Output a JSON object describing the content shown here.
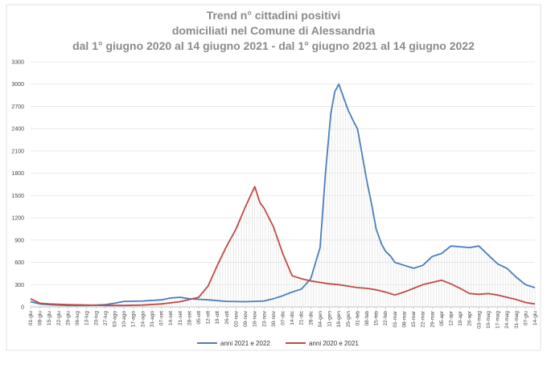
{
  "chart_data": {
    "type": "line",
    "title_lines": [
      "Trend n° cittadini positivi",
      "domiciliati nel Comune di Alessandria",
      "dal 1° giugno 2020 al 14 giugno 2021 - dal 1° giugno 2021 al 14 giugno 2022"
    ],
    "ylim": [
      0,
      3300
    ],
    "yticks": [
      0,
      300,
      600,
      900,
      1200,
      1500,
      1800,
      2100,
      2400,
      2700,
      3000,
      3300
    ],
    "grid": true,
    "legend_position": "bottom",
    "x_start_day": 1,
    "x_end_day": 379,
    "xtick_labels": [
      "01-giu",
      "08-giu",
      "15-giu",
      "22-giu",
      "29-giu",
      "06-lug",
      "13-lug",
      "20-lug",
      "27-lug",
      "03-ago",
      "10-ago",
      "17-ago",
      "24-ago",
      "31-ago",
      "07-set",
      "14-set",
      "21-set",
      "28-set",
      "05-ott",
      "12-ott",
      "19-ott",
      "26-ott",
      "02-nov",
      "09-nov",
      "16-nov",
      "23-nov",
      "30-nov",
      "07-dic",
      "14-dic",
      "21-dic",
      "28-dic",
      "04-gen",
      "11-gen",
      "18-gen",
      "25-gen",
      "01-feb",
      "08-feb",
      "15-feb",
      "22-feb",
      "01-mar",
      "08-mar",
      "15-mar",
      "22-mar",
      "29-mar",
      "05-apr",
      "12-apr",
      "19-apr",
      "26-apr",
      "03-mag",
      "10-mag",
      "17-mag",
      "24-mag",
      "31-mag",
      "07-giu",
      "14-giu"
    ],
    "series": [
      {
        "name": "anni 2021 e 2022",
        "color": "#4a7ebb",
        "x": [
          1,
          8,
          15,
          29,
          43,
          57,
          64,
          71,
          85,
          99,
          106,
          113,
          120,
          134,
          148,
          162,
          176,
          183,
          190,
          197,
          204,
          211,
          218,
          222,
          226,
          229,
          232,
          236,
          239,
          243,
          246,
          249,
          253,
          257,
          260,
          264,
          267,
          271,
          274,
          281,
          288,
          295,
          302,
          309,
          316,
          323,
          330,
          337,
          344,
          351,
          358,
          365,
          372,
          379
        ],
        "y": [
          70,
          40,
          30,
          20,
          20,
          30,
          50,
          75,
          80,
          95,
          120,
          130,
          110,
          95,
          75,
          70,
          80,
          110,
          150,
          200,
          240,
          380,
          800,
          1800,
          2600,
          2900,
          3000,
          2800,
          2650,
          2500,
          2400,
          2100,
          1700,
          1350,
          1050,
          850,
          750,
          680,
          600,
          560,
          520,
          560,
          680,
          720,
          820,
          810,
          800,
          820,
          700,
          580,
          520,
          400,
          300,
          260
        ]
      },
      {
        "name": "anni 2020 e 2021",
        "color": "#be4b48",
        "x": [
          1,
          8,
          15,
          29,
          43,
          57,
          71,
          85,
          99,
          113,
          127,
          134,
          141,
          148,
          155,
          162,
          169,
          173,
          176,
          183,
          190,
          197,
          204,
          211,
          218,
          225,
          232,
          239,
          246,
          253,
          260,
          267,
          274,
          281,
          288,
          295,
          302,
          309,
          316,
          323,
          330,
          337,
          344,
          351,
          358,
          365,
          372,
          379
        ],
        "y": [
          110,
          50,
          40,
          30,
          25,
          20,
          20,
          25,
          40,
          70,
          130,
          280,
          560,
          820,
          1050,
          1350,
          1620,
          1400,
          1330,
          1080,
          720,
          420,
          380,
          350,
          330,
          310,
          300,
          280,
          260,
          250,
          230,
          200,
          160,
          200,
          250,
          300,
          330,
          360,
          310,
          250,
          180,
          170,
          180,
          160,
          130,
          100,
          60,
          40
        ]
      }
    ]
  }
}
